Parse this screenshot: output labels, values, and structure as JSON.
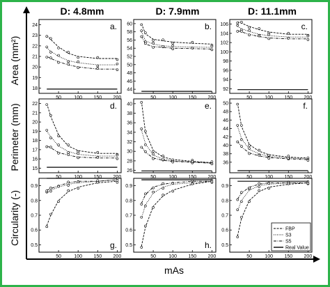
{
  "figure": {
    "border_color": "#2db34a"
  },
  "column_titles": [
    "D: 4.8mm",
    "D: 7.9mm",
    "D: 11.1mm"
  ],
  "row_titles": [
    "Area (mm²)",
    "Perimeter (mm)",
    "Circularity (-)"
  ],
  "xlabel": "mAs",
  "legend": {
    "entries": [
      {
        "label": "FBP",
        "style": "dashed"
      },
      {
        "label": "S3",
        "style": "dotted"
      },
      {
        "label": "S5",
        "style": "dashdot"
      },
      {
        "label": "Real Value",
        "style": "solid"
      }
    ]
  },
  "chart_data": [
    {
      "type": "line",
      "panel": "a.",
      "column": 0,
      "row": 0,
      "xlim": [
        0,
        210
      ],
      "ylim": [
        17.5,
        24.5
      ],
      "xticks": [
        50,
        100,
        150,
        200
      ],
      "yticks": [
        18,
        19,
        20,
        21,
        22,
        23,
        24
      ],
      "x": [
        20,
        30,
        50,
        75,
        100,
        150,
        200
      ],
      "series": [
        {
          "name": "FBP",
          "values": [
            23.0,
            22.6,
            21.9,
            21.3,
            21.0,
            20.8,
            20.8
          ]
        },
        {
          "name": "S3",
          "values": [
            21.8,
            21.5,
            21.0,
            20.6,
            20.4,
            20.2,
            20.2
          ]
        },
        {
          "name": "S5",
          "values": [
            21.0,
            20.8,
            20.5,
            20.2,
            20.0,
            19.8,
            19.8
          ]
        },
        {
          "name": "Real Value",
          "values": [
            17.9,
            17.9,
            17.9,
            17.9,
            17.9,
            17.9,
            17.9
          ]
        }
      ]
    },
    {
      "type": "line",
      "panel": "b.",
      "column": 1,
      "row": 0,
      "xlim": [
        0,
        210
      ],
      "ylim": [
        43,
        61
      ],
      "xticks": [
        50,
        100,
        150,
        200
      ],
      "yticks": [
        44,
        46,
        48,
        50,
        52,
        54,
        56,
        58,
        60
      ],
      "x": [
        20,
        30,
        50,
        75,
        100,
        150,
        200
      ],
      "series": [
        {
          "name": "FBP",
          "values": [
            60.0,
            57.5,
            56.2,
            55.8,
            55.5,
            55.2,
            55.0
          ]
        },
        {
          "name": "S3",
          "values": [
            58.0,
            55.8,
            55.0,
            54.6,
            54.4,
            54.3,
            54.2
          ]
        },
        {
          "name": "S5",
          "values": [
            57.0,
            55.0,
            54.4,
            54.2,
            54.0,
            53.9,
            53.8
          ]
        },
        {
          "name": "Real Value",
          "values": [
            43.5,
            43.5,
            43.5,
            43.5,
            43.5,
            43.5,
            43.5
          ]
        }
      ]
    },
    {
      "type": "line",
      "panel": "c.",
      "column": 2,
      "row": 0,
      "xlim": [
        0,
        210
      ],
      "ylim": [
        91,
        107
      ],
      "xticks": [
        50,
        100,
        150,
        200
      ],
      "yticks": [
        92,
        94,
        96,
        98,
        100,
        102,
        104,
        106
      ],
      "x": [
        20,
        30,
        50,
        75,
        100,
        150,
        200
      ],
      "series": [
        {
          "name": "FBP",
          "values": [
            106.5,
            106.2,
            105.5,
            104.8,
            104.3,
            103.8,
            103.8
          ]
        },
        {
          "name": "S3",
          "values": [
            105.5,
            105.0,
            104.4,
            103.8,
            103.5,
            103.2,
            103.2
          ]
        },
        {
          "name": "S5",
          "values": [
            104.6,
            104.3,
            103.8,
            103.3,
            103.0,
            102.8,
            102.8
          ]
        },
        {
          "name": "Real Value",
          "values": [
            91.8,
            91.8,
            91.8,
            91.8,
            91.8,
            91.8,
            91.8
          ]
        }
      ]
    },
    {
      "type": "line",
      "panel": "d.",
      "column": 0,
      "row": 1,
      "xlim": [
        0,
        210
      ],
      "ylim": [
        14.5,
        22.5
      ],
      "xticks": [
        50,
        100,
        150,
        200
      ],
      "yticks": [
        15,
        16,
        17,
        18,
        19,
        20,
        21,
        22
      ],
      "x": [
        20,
        30,
        50,
        75,
        100,
        150,
        200
      ],
      "series": [
        {
          "name": "FBP",
          "values": [
            22.0,
            20.6,
            18.6,
            17.4,
            16.9,
            16.6,
            16.6
          ]
        },
        {
          "name": "S3",
          "values": [
            19.0,
            18.4,
            17.4,
            16.8,
            16.5,
            16.3,
            16.3
          ]
        },
        {
          "name": "S5",
          "values": [
            17.4,
            17.2,
            16.7,
            16.4,
            16.2,
            16.1,
            16.1
          ]
        },
        {
          "name": "Real Value",
          "values": [
            15.1,
            15.1,
            15.1,
            15.1,
            15.1,
            15.1,
            15.1
          ]
        }
      ]
    },
    {
      "type": "line",
      "panel": "e.",
      "column": 1,
      "row": 1,
      "xlim": [
        0,
        210
      ],
      "ylim": [
        25.5,
        41
      ],
      "xticks": [
        50,
        100,
        150,
        200
      ],
      "yticks": [
        26,
        28,
        30,
        32,
        34,
        36,
        38,
        40
      ],
      "x": [
        20,
        30,
        50,
        75,
        100,
        150,
        200
      ],
      "series": [
        {
          "name": "FBP",
          "values": [
            40.5,
            34.0,
            30.2,
            28.8,
            28.3,
            27.9,
            27.6
          ]
        },
        {
          "name": "S3",
          "values": [
            34.5,
            31.6,
            29.2,
            28.4,
            28.0,
            27.8,
            27.6
          ]
        },
        {
          "name": "S5",
          "values": [
            31.0,
            29.8,
            28.6,
            28.1,
            27.9,
            27.7,
            27.5
          ]
        },
        {
          "name": "Real Value",
          "values": [
            25.9,
            25.9,
            25.9,
            25.9,
            25.9,
            25.9,
            25.9
          ]
        }
      ]
    },
    {
      "type": "line",
      "panel": "f.",
      "column": 2,
      "row": 1,
      "xlim": [
        0,
        210
      ],
      "ylim": [
        33.5,
        51
      ],
      "xticks": [
        50,
        100,
        150,
        200
      ],
      "yticks": [
        36,
        38,
        40,
        42,
        44,
        46,
        48,
        50
      ],
      "x": [
        20,
        30,
        50,
        75,
        100,
        150,
        200
      ],
      "series": [
        {
          "name": "FBP",
          "values": [
            50.0,
            44.5,
            40.2,
            38.6,
            37.8,
            37.2,
            37.0
          ]
        },
        {
          "name": "S3",
          "values": [
            44.5,
            41.6,
            39.0,
            38.0,
            37.4,
            37.0,
            36.8
          ]
        },
        {
          "name": "S5",
          "values": [
            41.0,
            39.6,
            38.2,
            37.5,
            37.1,
            36.8,
            36.6
          ]
        },
        {
          "name": "Real Value",
          "values": [
            34.0,
            34.0,
            34.0,
            34.0,
            34.0,
            34.0,
            34.0
          ]
        }
      ]
    },
    {
      "type": "line",
      "panel": "g.",
      "column": 0,
      "row": 2,
      "xlim": [
        0,
        210
      ],
      "ylim": [
        0.45,
        0.95
      ],
      "xticks": [
        50,
        100,
        150,
        200
      ],
      "yticks": [
        0.5,
        0.6,
        0.7,
        0.8,
        0.9
      ],
      "x": [
        20,
        30,
        50,
        75,
        100,
        150,
        200
      ],
      "series": [
        {
          "name": "FBP",
          "values": [
            0.63,
            0.7,
            0.8,
            0.86,
            0.89,
            0.92,
            0.93
          ]
        },
        {
          "name": "S3",
          "values": [
            0.85,
            0.87,
            0.89,
            0.91,
            0.92,
            0.93,
            0.94
          ]
        },
        {
          "name": "S5",
          "values": [
            0.87,
            0.88,
            0.9,
            0.92,
            0.93,
            0.93,
            0.94
          ]
        },
        {
          "name": "Real Value",
          "values": [
            0.95,
            0.95,
            0.95,
            0.95,
            0.95,
            0.95,
            0.95
          ]
        }
      ]
    },
    {
      "type": "line",
      "panel": "h.",
      "column": 1,
      "row": 2,
      "xlim": [
        0,
        210
      ],
      "ylim": [
        0.45,
        0.95
      ],
      "xticks": [
        50,
        100,
        150,
        200
      ],
      "yticks": [
        0.5,
        0.6,
        0.7,
        0.8,
        0.9
      ],
      "x": [
        20,
        30,
        50,
        75,
        100,
        150,
        200
      ],
      "series": [
        {
          "name": "FBP",
          "values": [
            0.49,
            0.62,
            0.76,
            0.83,
            0.87,
            0.91,
            0.93
          ]
        },
        {
          "name": "S3",
          "values": [
            0.68,
            0.77,
            0.85,
            0.89,
            0.91,
            0.92,
            0.93
          ]
        },
        {
          "name": "S5",
          "values": [
            0.78,
            0.84,
            0.89,
            0.91,
            0.92,
            0.93,
            0.93
          ]
        },
        {
          "name": "Real Value",
          "values": [
            0.94,
            0.94,
            0.94,
            0.94,
            0.94,
            0.94,
            0.94
          ]
        }
      ]
    },
    {
      "type": "line",
      "panel": "i.",
      "column": 2,
      "row": 2,
      "xlim": [
        0,
        210
      ],
      "ylim": [
        0.45,
        0.95
      ],
      "xticks": [
        50,
        100,
        150,
        200
      ],
      "yticks": [
        0.5,
        0.6,
        0.7,
        0.8,
        0.9
      ],
      "x": [
        20,
        30,
        50,
        75,
        100,
        150,
        200
      ],
      "series": [
        {
          "name": "FBP",
          "values": [
            0.56,
            0.68,
            0.8,
            0.86,
            0.89,
            0.91,
            0.92
          ]
        },
        {
          "name": "S3",
          "values": [
            0.73,
            0.8,
            0.87,
            0.9,
            0.91,
            0.92,
            0.92
          ]
        },
        {
          "name": "S5",
          "values": [
            0.81,
            0.85,
            0.89,
            0.91,
            0.92,
            0.92,
            0.92
          ]
        },
        {
          "name": "Real Value",
          "values": [
            0.93,
            0.93,
            0.93,
            0.93,
            0.93,
            0.93,
            0.93
          ]
        }
      ]
    }
  ]
}
